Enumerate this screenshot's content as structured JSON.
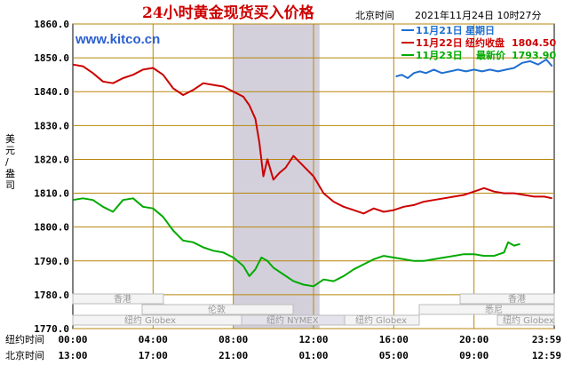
{
  "header": {
    "title": "24小时黄金现货买入价格",
    "timezone": "北京时间",
    "datetime": "2021年11月24日 10时27分",
    "site": "www.kitco.cn"
  },
  "legend": {
    "line1": "11月21日",
    "label1": "星期日",
    "line2": "11月22日",
    "label2": "纽约收盘",
    "value2": "1804.50",
    "line3": "11月23日",
    "label3": "最新价",
    "value3": "1793.90"
  },
  "axis": {
    "ylabel": "美元/盎司",
    "ny_row_label": "纽约时间",
    "bj_row_label": "北京时间",
    "ny_ticks": [
      "00:00",
      "04:00",
      "08:00",
      "12:00",
      "16:00",
      "20:00",
      "23:59"
    ],
    "bj_ticks": [
      "13:00",
      "17:00",
      "21:00",
      "01:00",
      "05:00",
      "09:00",
      "12:59"
    ]
  },
  "markets": {
    "hongkong_left": "香港",
    "hongkong_right": "香港",
    "london": "伦敦",
    "sydney": "悉尼",
    "ny_globex_1": "纽约 Globex",
    "ny_nymex": "纽约 NYMEX",
    "ny_globex_2": "纽约 Globex",
    "ny_globex_3": "纽约 Globex"
  },
  "colors": {
    "red": "#cc0000",
    "green": "#00aa00",
    "blue": "#1f6fd0",
    "grid": "#b8860b",
    "band": "#d3d0dc"
  },
  "chart_data": {
    "type": "line",
    "title": "24小时黄金现货买入价格",
    "ylabel": "美元/盎司",
    "ylim": [
      1770,
      1860
    ],
    "yticks": [
      1770,
      1780,
      1790,
      1800,
      1810,
      1820,
      1830,
      1840,
      1850,
      1860
    ],
    "xlim_hours": [
      0,
      24
    ],
    "grid": true,
    "legend_position": "top-right",
    "shaded_range_hours": [
      8,
      12.3
    ],
    "series": [
      {
        "name": "11月21日",
        "color": "#1f6fd0",
        "x": [
          16.1,
          16.4,
          16.7,
          17.0,
          17.3,
          17.6,
          18.0,
          18.4,
          18.8,
          19.2,
          19.6,
          20.0,
          20.4,
          20.8,
          21.2,
          21.6,
          22.0,
          22.4,
          22.8,
          23.2,
          23.6,
          23.9
        ],
        "y": [
          1844.5,
          1845.0,
          1844.0,
          1845.5,
          1846.0,
          1845.5,
          1846.5,
          1845.5,
          1846.0,
          1846.5,
          1846.0,
          1846.5,
          1846.0,
          1846.5,
          1846.0,
          1846.5,
          1847.0,
          1848.5,
          1849.0,
          1848.0,
          1849.5,
          1847.5
        ]
      },
      {
        "name": "11月22日",
        "color": "#cc0000",
        "x": [
          0,
          0.5,
          1.0,
          1.5,
          2.0,
          2.5,
          3.0,
          3.5,
          4.0,
          4.5,
          5.0,
          5.5,
          6.0,
          6.5,
          7.0,
          7.5,
          8.0,
          8.5,
          8.8,
          9.1,
          9.3,
          9.5,
          9.7,
          10.0,
          10.3,
          10.6,
          11.0,
          11.5,
          12.0,
          12.5,
          13.0,
          13.5,
          14.0,
          14.5,
          15.0,
          15.5,
          16.0,
          16.5,
          17.0,
          17.5,
          18.0,
          18.5,
          19.0,
          19.5,
          20.0,
          20.5,
          21.0,
          21.5,
          22.0,
          22.5,
          23.0,
          23.5,
          23.9
        ],
        "y": [
          1848.0,
          1847.5,
          1845.5,
          1843.0,
          1842.5,
          1844.0,
          1845.0,
          1846.5,
          1847.0,
          1845.0,
          1841.0,
          1839.0,
          1840.5,
          1842.5,
          1842.0,
          1841.5,
          1840.0,
          1838.5,
          1836.0,
          1832.0,
          1825.0,
          1815.0,
          1820.0,
          1814.0,
          1816.0,
          1817.5,
          1821.0,
          1818.0,
          1815.0,
          1810.0,
          1807.5,
          1806.0,
          1805.0,
          1804.0,
          1805.5,
          1804.5,
          1805.0,
          1806.0,
          1806.5,
          1807.5,
          1808.0,
          1808.5,
          1809.0,
          1809.5,
          1810.5,
          1811.5,
          1810.5,
          1810.0,
          1810.0,
          1809.5,
          1809.0,
          1809.0,
          1808.5
        ]
      },
      {
        "name": "11月23日",
        "color": "#00aa00",
        "x": [
          0,
          0.5,
          1.0,
          1.5,
          2.0,
          2.5,
          3.0,
          3.5,
          4.0,
          4.5,
          5.0,
          5.5,
          6.0,
          6.5,
          7.0,
          7.5,
          8.0,
          8.5,
          8.8,
          9.1,
          9.4,
          9.7,
          10.0,
          10.5,
          11.0,
          11.5,
          12.0,
          12.5,
          13.0,
          13.5,
          14.0,
          14.5,
          15.0,
          15.5,
          16.0,
          16.5,
          17.0,
          17.5,
          18.0,
          18.5,
          19.0,
          19.5,
          20.0,
          20.5,
          21.0,
          21.5,
          21.7,
          22.0,
          22.3
        ],
        "y": [
          1808.0,
          1808.5,
          1808.0,
          1806.0,
          1804.5,
          1808.0,
          1808.5,
          1806.0,
          1805.5,
          1803.0,
          1799.0,
          1796.0,
          1795.5,
          1794.0,
          1793.0,
          1792.5,
          1791.0,
          1788.5,
          1785.5,
          1787.5,
          1791.0,
          1790.0,
          1788.0,
          1786.0,
          1784.0,
          1783.0,
          1782.5,
          1784.5,
          1784.0,
          1785.5,
          1787.5,
          1789.0,
          1790.5,
          1791.5,
          1791.0,
          1790.5,
          1790.0,
          1790.0,
          1790.5,
          1791.0,
          1791.5,
          1792.0,
          1792.0,
          1791.5,
          1791.5,
          1792.5,
          1795.5,
          1794.5,
          1795.0
        ]
      }
    ]
  }
}
